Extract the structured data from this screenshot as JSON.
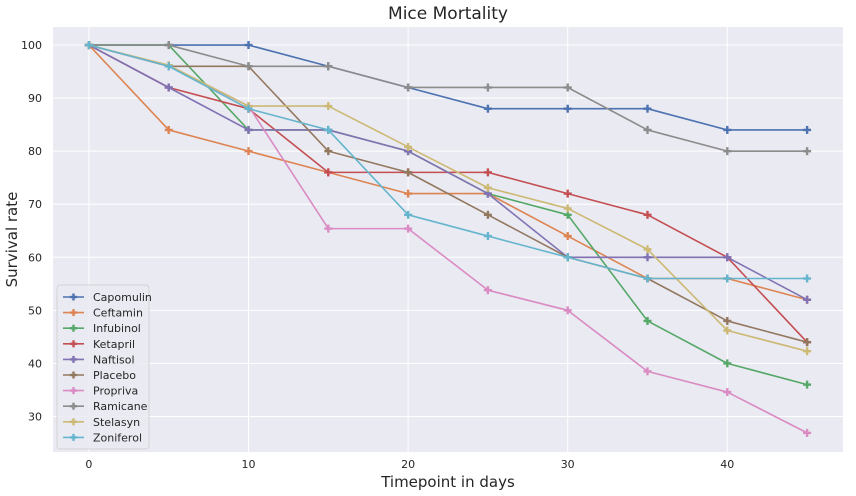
{
  "chart_data": {
    "type": "line",
    "title": "Mice Mortality",
    "xlabel": "Timepoint in days",
    "ylabel": "Survival rate",
    "xlim": [
      -2.25,
      47.25
    ],
    "ylim": [
      23.3,
      103.4
    ],
    "xticks": [
      0,
      10,
      20,
      30,
      40
    ],
    "yticks": [
      30,
      40,
      50,
      60,
      70,
      80,
      90,
      100
    ],
    "grid": true,
    "background": "#eaeaf2",
    "legend_position": "lower-left",
    "marker": "plus",
    "x": [
      0,
      5,
      10,
      15,
      20,
      25,
      30,
      35,
      40,
      45
    ],
    "series": [
      {
        "name": "Capomulin",
        "color": "#4c72b0",
        "values": [
          100,
          100,
          100,
          96,
          92,
          88,
          88,
          88,
          84,
          84
        ]
      },
      {
        "name": "Ceftamin",
        "color": "#dd8452",
        "values": [
          100,
          84,
          80,
          76,
          72,
          72,
          64,
          56,
          56,
          52
        ]
      },
      {
        "name": "Infubinol",
        "color": "#55a868",
        "values": [
          100,
          100,
          84,
          84,
          80,
          72,
          68,
          48,
          40,
          36
        ]
      },
      {
        "name": "Ketapril",
        "color": "#c44e52",
        "values": [
          100,
          92,
          88,
          76,
          76,
          76,
          72,
          68,
          60,
          44
        ]
      },
      {
        "name": "Naftisol",
        "color": "#8172b3",
        "values": [
          100,
          92,
          84,
          84,
          80,
          72,
          60,
          60,
          60,
          52
        ]
      },
      {
        "name": "Placebo",
        "color": "#937860",
        "values": [
          100,
          96,
          96,
          80,
          76,
          68,
          60,
          56,
          48,
          44
        ]
      },
      {
        "name": "Propriva",
        "color": "#da8bc3",
        "values": [
          100,
          96,
          88.5,
          65.4,
          65.4,
          53.8,
          50,
          38.5,
          34.6,
          26.9
        ]
      },
      {
        "name": "Ramicane",
        "color": "#8c8c8c",
        "values": [
          100,
          100,
          96,
          96,
          92,
          92,
          92,
          84,
          80,
          80
        ]
      },
      {
        "name": "Stelasyn",
        "color": "#ccb974",
        "values": [
          100,
          96.2,
          88.5,
          88.5,
          80.8,
          73.1,
          69.2,
          61.5,
          46.2,
          42.3
        ]
      },
      {
        "name": "Zoniferol",
        "color": "#64b5cd",
        "values": [
          100,
          96,
          88,
          84,
          68,
          64,
          60,
          56,
          56,
          56
        ]
      }
    ]
  }
}
